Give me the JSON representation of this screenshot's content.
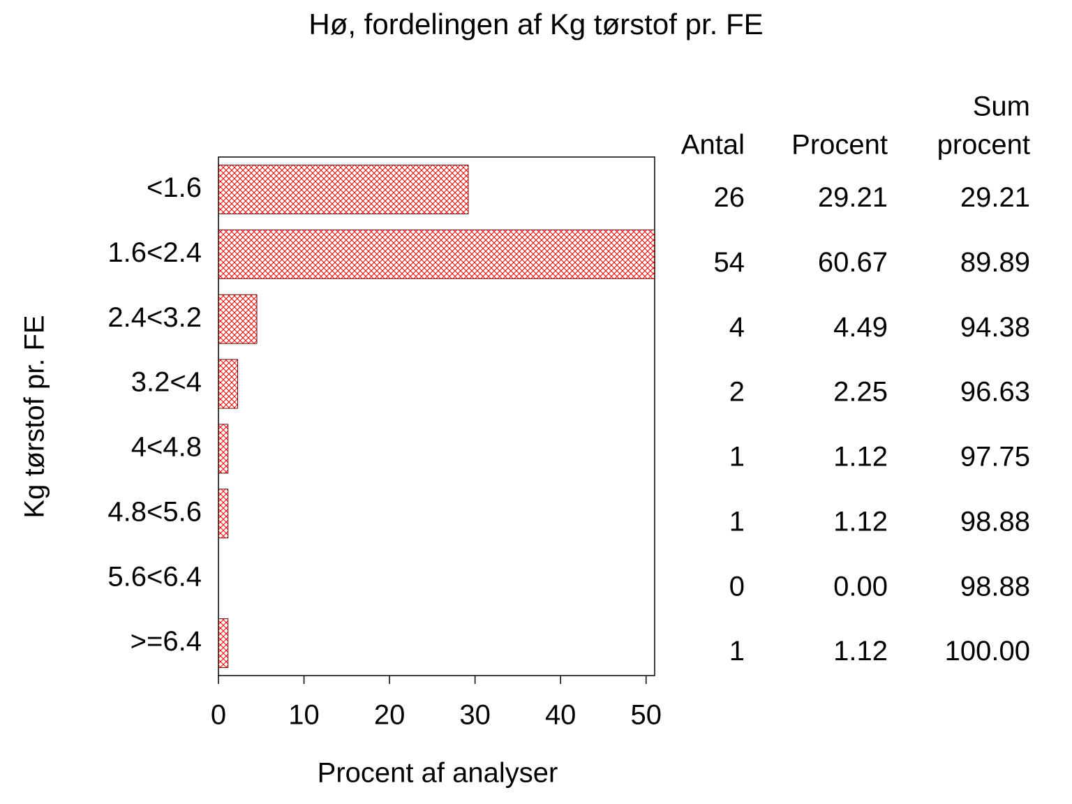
{
  "chart_data": {
    "type": "bar",
    "title": "Hø, fordelingen af Kg tørstof pr. FE",
    "x_label": "Procent af analyser",
    "y_label": "Kg tørstof pr. FE",
    "categories": [
      "<1.6",
      "1.6<2.4",
      "2.4<3.2",
      "3.2<4",
      "4<4.8",
      "4.8<5.6",
      "5.6<6.4",
      ">=6.4"
    ],
    "values": [
      29.21,
      60.67,
      4.49,
      2.25,
      1.12,
      1.12,
      0,
      1.12
    ],
    "value_labels": [
      "29.21",
      "60.67",
      "4.49",
      "2.25",
      "1.12",
      "1.12",
      "0.00",
      "1.12"
    ],
    "color": "#ff0000",
    "xlim": [
      0,
      51
    ],
    "xticks": [
      0,
      10,
      20,
      30,
      40,
      50
    ],
    "count_header": "Antal",
    "percent_header": "Procent",
    "cumulative_header": [
      "Sum",
      "procent"
    ],
    "counts": [
      26,
      54,
      4,
      2,
      1,
      1,
      0,
      1
    ],
    "cumulative_labels": [
      "29.21",
      "89.89",
      "94.38",
      "96.63",
      "97.75",
      "98.88",
      "98.88",
      "100.00"
    ]
  }
}
